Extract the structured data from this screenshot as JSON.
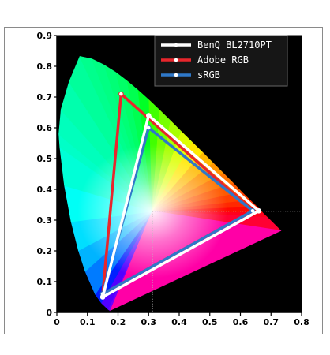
{
  "chart_data": {
    "type": "scatter",
    "xlim": [
      0,
      0.8
    ],
    "ylim": [
      0,
      0.9
    ],
    "x_ticks": [
      "0",
      "0.1",
      "0.2",
      "0.3",
      "0.4",
      "0.5",
      "0.6",
      "0.7",
      "0.8"
    ],
    "y_ticks": [
      "0",
      "0.1",
      "0.2",
      "0.3",
      "0.4",
      "0.5",
      "0.6",
      "0.7",
      "0.8",
      "0.9"
    ],
    "grid": false,
    "legend_position": "top-right",
    "white_point": [
      0.3127,
      0.329
    ],
    "locus": [
      [
        0.175,
        0.005
      ],
      [
        0.172,
        0.005
      ],
      [
        0.166,
        0.009
      ],
      [
        0.144,
        0.03
      ],
      [
        0.124,
        0.058
      ],
      [
        0.091,
        0.133
      ],
      [
        0.069,
        0.201
      ],
      [
        0.045,
        0.295
      ],
      [
        0.023,
        0.413
      ],
      [
        0.008,
        0.538
      ],
      [
        0.005,
        0.58
      ],
      [
        0.012,
        0.66
      ],
      [
        0.039,
        0.751
      ],
      [
        0.074,
        0.834
      ],
      [
        0.114,
        0.826
      ],
      [
        0.155,
        0.806
      ],
      [
        0.193,
        0.782
      ],
      [
        0.23,
        0.754
      ],
      [
        0.266,
        0.724
      ],
      [
        0.302,
        0.692
      ],
      [
        0.337,
        0.659
      ],
      [
        0.373,
        0.624
      ],
      [
        0.408,
        0.589
      ],
      [
        0.444,
        0.554
      ],
      [
        0.479,
        0.52
      ],
      [
        0.513,
        0.486
      ],
      [
        0.547,
        0.452
      ],
      [
        0.579,
        0.42
      ],
      [
        0.608,
        0.39
      ],
      [
        0.635,
        0.364
      ],
      [
        0.658,
        0.342
      ],
      [
        0.677,
        0.322
      ],
      [
        0.692,
        0.308
      ],
      [
        0.735,
        0.265
      ]
    ],
    "series": [
      {
        "name": "BenQ BL2710PT",
        "color": "#ffffff",
        "points": [
          [
            0.66,
            0.33
          ],
          [
            0.3,
            0.64
          ],
          [
            0.15,
            0.05
          ]
        ]
      },
      {
        "name": "Adobe RGB",
        "color": "#e8262c",
        "points": [
          [
            0.64,
            0.33
          ],
          [
            0.21,
            0.71
          ],
          [
            0.15,
            0.06
          ]
        ]
      },
      {
        "name": "sRGB",
        "color": "#2f78c8",
        "points": [
          [
            0.64,
            0.33
          ],
          [
            0.3,
            0.6
          ],
          [
            0.15,
            0.06
          ]
        ]
      }
    ]
  }
}
